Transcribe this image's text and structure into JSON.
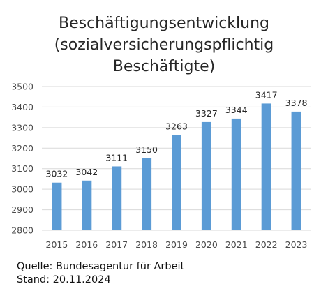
{
  "chart_data": {
    "type": "bar",
    "title_lines": [
      "Beschäftigungsentwicklung",
      "(sozialversicherungspflichtig",
      "Beschäftigte)"
    ],
    "categories": [
      "2015",
      "2016",
      "2017",
      "2018",
      "2019",
      "2020",
      "2021",
      "2022",
      "2023"
    ],
    "values": [
      3032,
      3042,
      3111,
      3150,
      3263,
      3327,
      3344,
      3417,
      3378
    ],
    "data_labels": [
      "3032",
      "3042",
      "3111",
      "3150",
      "3263",
      "3327",
      "3344",
      "3417",
      "3378"
    ],
    "xlabel": "",
    "ylabel": "",
    "ylim": [
      2800,
      3500
    ],
    "yticks": [
      2800,
      2900,
      3000,
      3100,
      3200,
      3300,
      3400,
      3500
    ],
    "grid": true,
    "legend": "none",
    "bar_color": "#5b9bd5",
    "grid_color": "#d9d9d9"
  },
  "footnote": {
    "source": "Quelle: Bundesagentur für Arbeit",
    "date": "Stand: 20.11.2024"
  }
}
